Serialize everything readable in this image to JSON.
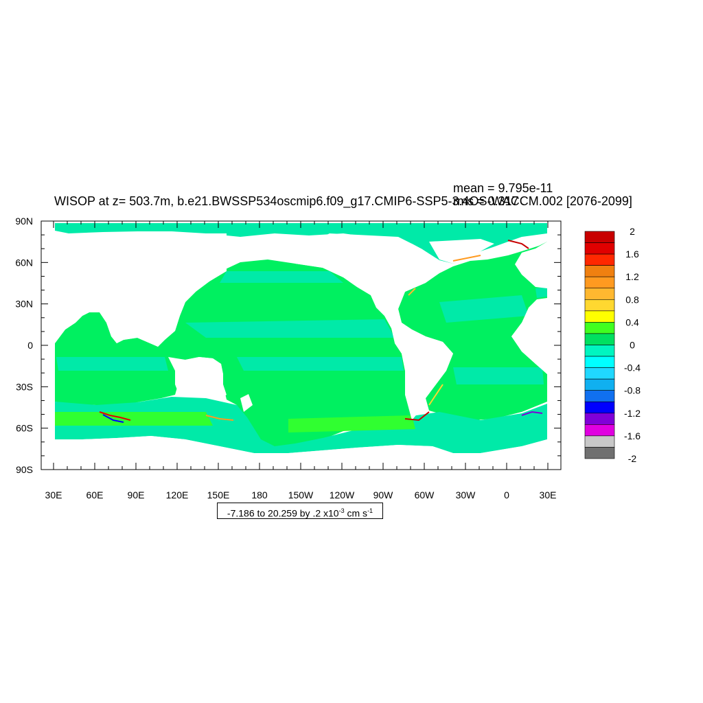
{
  "title": "WISOP at z= 503.7m, b.e21.BWSSP534oscmip6.f09_g17.CMIP6-SSP5-3.4OS-WACCM.002 [2076-2099]",
  "stats": {
    "mean": "mean = 9.795e-11",
    "rms": "rms = 0.317"
  },
  "contour_info": {
    "text": "-7.186 to 20.259 by .2 x10",
    "exponent": "-3",
    "units": " cm s",
    "units_exponent": "-1"
  },
  "map": {
    "projection": "cylindrical equidistant",
    "lat_labels": [
      "90N",
      "60N",
      "30N",
      "0",
      "30S",
      "60S",
      "90S"
    ],
    "lon_labels": [
      "30E",
      "60E",
      "90E",
      "120E",
      "150E",
      "180",
      "150W",
      "120W",
      "90W",
      "60W",
      "30W",
      "0",
      "30E"
    ],
    "land_color": "#ffffff",
    "dominant_ocean_colors": [
      "#00eaa8",
      "#00f060",
      "#30ff30"
    ]
  },
  "colorbar": {
    "labels": [
      "2",
      "1.6",
      "1.2",
      "0.8",
      "0.4",
      "0",
      "-0.4",
      "-0.8",
      "-1.2",
      "-1.6",
      "-2"
    ],
    "colors_top_to_bottom": [
      "#c80000",
      "#e00000",
      "#ff2800",
      "#f08010",
      "#ff9a20",
      "#ffb830",
      "#ffd830",
      "#ffff00",
      "#40ff20",
      "#00e060",
      "#00f5c0",
      "#00ffff",
      "#20d8ff",
      "#10b0f0",
      "#1070f0",
      "#0000ff",
      "#8000d8",
      "#e000e0",
      "#c8c8c8",
      "#707070"
    ]
  }
}
